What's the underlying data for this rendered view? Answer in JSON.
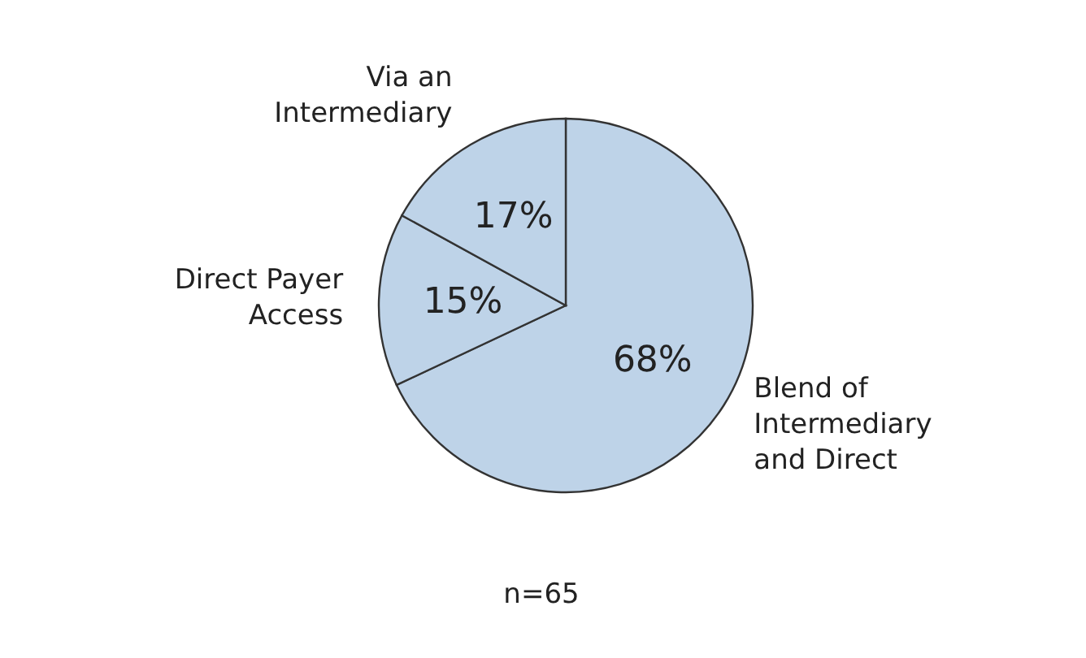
{
  "chart_data": {
    "type": "pie",
    "categories": [
      "Blend of Intermediary and Direct",
      "Direct Payer Access",
      "Via an Intermediary"
    ],
    "values": [
      68,
      15,
      17
    ],
    "colors": [
      "#bed3e8",
      "#bed3e8",
      "#bed3e8"
    ],
    "value_labels": [
      "68%",
      "15%",
      "17%"
    ],
    "annotations": [
      "n=65"
    ]
  }
}
